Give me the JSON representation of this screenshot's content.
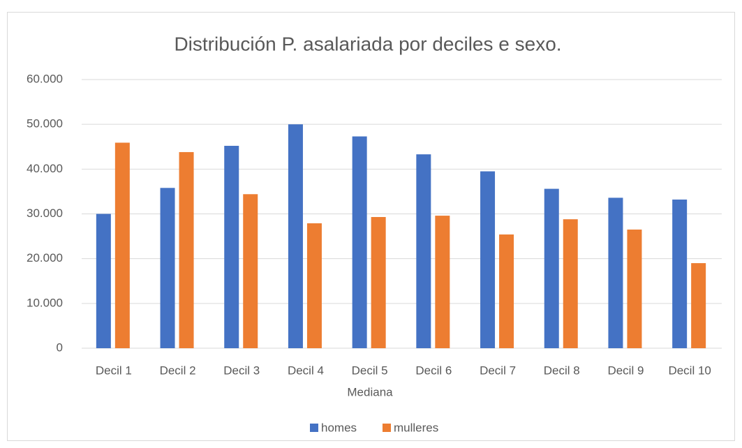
{
  "chart_data": {
    "type": "bar",
    "title": "Distribución P. asalariada por deciles e sexo.",
    "x_label": "Mediana",
    "categories": [
      "Decil 1",
      "Decil 2",
      "Decil 3",
      "Decil 4",
      "Decil 5",
      "Decil 6",
      "Decil 7",
      "Decil 8",
      "Decil 9",
      "Decil 10"
    ],
    "series": [
      {
        "name": "homes",
        "color": "#4472c4",
        "values": [
          30000,
          35800,
          45200,
          50000,
          47300,
          43300,
          39500,
          35600,
          33600,
          33200
        ]
      },
      {
        "name": "mulleres",
        "color": "#ed7d31",
        "values": [
          45900,
          43800,
          34400,
          27900,
          29300,
          29600,
          25400,
          28800,
          26500,
          19000
        ]
      }
    ],
    "ylim": [
      0,
      60000
    ],
    "yticks": [
      0,
      {
        "value": 10000,
        "label": "10.000"
      },
      {
        "value": 20000,
        "label": "20.000"
      },
      {
        "value": 30000,
        "label": "30.000"
      },
      {
        "value": 40000,
        "label": "40.000"
      },
      {
        "value": 50000,
        "label": "50.000"
      },
      {
        "value": 60000,
        "label": "60.000"
      }
    ],
    "grid": true,
    "legend": "bottom"
  }
}
